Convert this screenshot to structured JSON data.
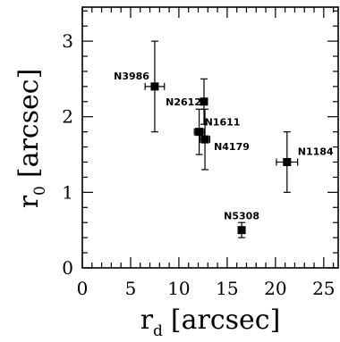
{
  "chart_data": {
    "type": "scatter",
    "title": "",
    "xlabel_main": "r",
    "xlabel_sub": "d",
    "xlabel_unit": "[arcsec]",
    "ylabel_main": "r",
    "ylabel_sub": "0",
    "ylabel_unit": "[arcsec]",
    "xlim": [
      0,
      26.5
    ],
    "ylim": [
      0,
      3.45
    ],
    "xticks": [
      0,
      5,
      10,
      15,
      20,
      25
    ],
    "yticks": [
      0,
      1,
      2,
      3
    ],
    "xtick_labels": [
      "0",
      "5",
      "10",
      "15",
      "20",
      "25"
    ],
    "ytick_labels": [
      "0",
      "1",
      "2",
      "3"
    ],
    "grid": false,
    "points": [
      {
        "label": "N3986",
        "x": 7.5,
        "y": 2.4,
        "xerr": 1.0,
        "yerr": 0.6
      },
      {
        "label": "N2612",
        "x": 12.6,
        "y": 2.2,
        "xerr": 0,
        "yerr": 0.3
      },
      {
        "label": "N1611",
        "x": 12.1,
        "y": 1.8,
        "xerr": 0.5,
        "yerr": 0.3
      },
      {
        "label": "N4179",
        "x": 12.7,
        "y": 1.7,
        "xerr": 0.5,
        "yerr": 0.4
      },
      {
        "label": "N1184",
        "x": 21.2,
        "y": 1.4,
        "xerr": 1.1,
        "yerr": 0.4
      },
      {
        "label": "N5308",
        "x": 16.5,
        "y": 0.5,
        "xerr": 0.3,
        "yerr": 0.1
      }
    ]
  }
}
